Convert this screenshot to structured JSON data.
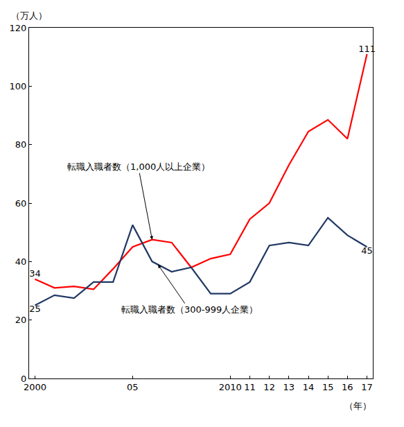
{
  "chart_data": {
    "type": "line",
    "ylabel": "（万人）",
    "xlabel": "（年）",
    "categories": [
      "2000",
      null,
      null,
      null,
      null,
      "05",
      null,
      null,
      null,
      null,
      "2010",
      "11",
      "12",
      "13",
      "14",
      "15",
      "16",
      "17"
    ],
    "series": [
      {
        "name": "転職入職者数（1,000人以上企業）",
        "color": "#ff0000",
        "values": [
          34,
          31,
          31.5,
          30.5,
          37.5,
          45,
          47.5,
          46.5,
          38,
          41,
          42.5,
          54.5,
          60,
          73,
          84.5,
          88.5,
          82,
          111
        ],
        "value_labels": [
          "34",
          null,
          null,
          null,
          null,
          null,
          null,
          null,
          null,
          null,
          null,
          null,
          null,
          null,
          null,
          null,
          null,
          "111"
        ]
      },
      {
        "name": "転職入職者数（300-999人企業）",
        "color": "#203864",
        "values": [
          25,
          28.5,
          27.5,
          33,
          33,
          52.5,
          40,
          36.5,
          38,
          29,
          29,
          33,
          45.5,
          46.5,
          45.5,
          55,
          49,
          45
        ],
        "value_labels": [
          "25",
          null,
          null,
          null,
          null,
          null,
          null,
          null,
          null,
          null,
          null,
          null,
          null,
          null,
          null,
          null,
          null,
          "45"
        ]
      }
    ],
    "ylim": [
      0,
      120
    ],
    "yticks": [
      0,
      20,
      40,
      60,
      80,
      100,
      120
    ],
    "grid": false
  }
}
